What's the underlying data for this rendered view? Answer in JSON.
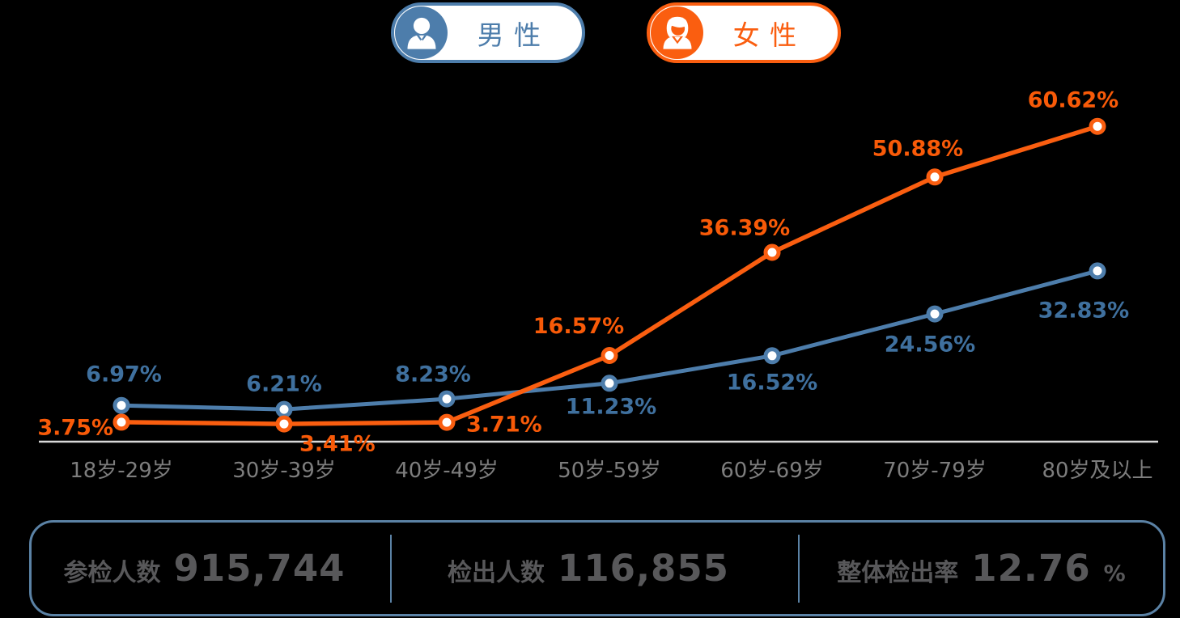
{
  "legend": {
    "male_label": "男性",
    "female_label": "女性"
  },
  "chart_data": {
    "type": "line",
    "categories": [
      "18岁-29岁",
      "30岁-39岁",
      "40岁-49岁",
      "50岁-59岁",
      "60岁-69岁",
      "70岁-79岁",
      "80岁及以上"
    ],
    "series": [
      {
        "name": "男性",
        "color": "#4d7dab",
        "label_color": "#3f709e",
        "values": [
          6.97,
          6.21,
          8.23,
          11.23,
          16.52,
          24.56,
          32.83
        ]
      },
      {
        "name": "女性",
        "color": "#fa5e10",
        "label_color": "#f85a08",
        "values": [
          3.75,
          3.41,
          3.71,
          16.57,
          36.39,
          50.88,
          60.62
        ]
      }
    ],
    "unit": "%",
    "ylim": [
      0,
      65
    ],
    "grid": false,
    "legend_position": "top",
    "marker": "open-circle",
    "axis_line_color": "#d9d9d9",
    "axis_label_color": "#7d7d7d"
  },
  "stats": {
    "items": [
      {
        "label": "参检人数",
        "value": "915,744",
        "suffix": ""
      },
      {
        "label": "检出人数",
        "value": "116,855",
        "suffix": ""
      },
      {
        "label": "整体检出率",
        "value": "12.76",
        "suffix": "%"
      }
    ]
  },
  "colors": {
    "male": "#4d7dab",
    "female": "#fa5e10",
    "axis_line": "#d9d9d9",
    "axis_label": "#7d7d7d",
    "stats_text": "#58585a",
    "stats_border": "#5b82a5",
    "background": "#000000"
  }
}
